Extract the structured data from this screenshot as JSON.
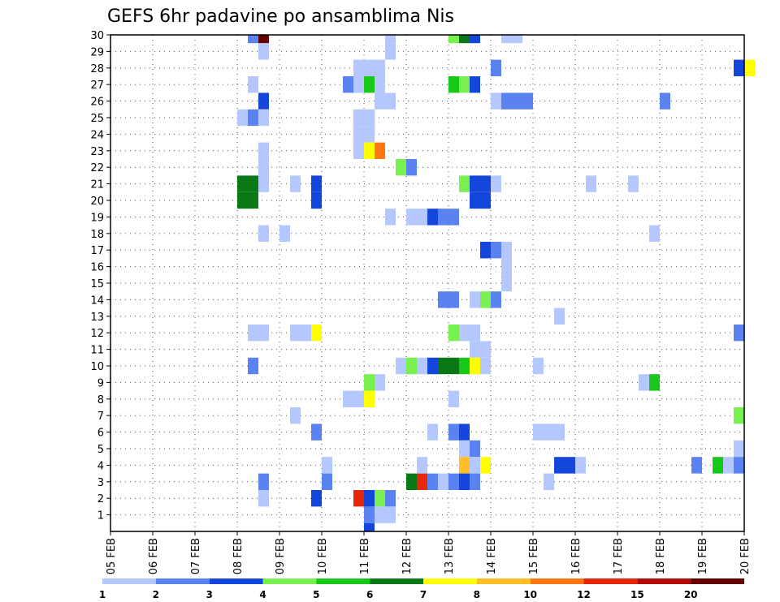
{
  "chart_data": {
    "type": "heatmap",
    "title": "GEFS 6hr padavine po ansamblima Nis",
    "xlabel": "",
    "ylabel": "",
    "x_tick_labels": [
      "05 FEB",
      "06 FEB",
      "07 FEB",
      "08 FEB",
      "09 FEB",
      "10 FEB",
      "11 FEB",
      "12 FEB",
      "13 FEB",
      "14 FEB",
      "15 FEB",
      "16 FEB",
      "17 FEB",
      "18 FEB",
      "19 FEB",
      "20 FEB"
    ],
    "y_tick_labels": [
      "1",
      "2",
      "3",
      "4",
      "5",
      "6",
      "7",
      "8",
      "9",
      "10",
      "11",
      "12",
      "13",
      "14",
      "15",
      "16",
      "17",
      "18",
      "19",
      "20",
      "21",
      "22",
      "23",
      "24",
      "25",
      "26",
      "27",
      "28",
      "29",
      "30"
    ],
    "x_range_days": [
      0,
      15
    ],
    "step_hours": 6,
    "y_range": [
      0,
      30
    ],
    "grid": true,
    "colorbar": {
      "labels": [
        "1",
        "2",
        "3",
        "4",
        "5",
        "6",
        "7",
        "8",
        "10",
        "12",
        "15",
        "20"
      ],
      "colors": [
        "#b4c8ff",
        "#5a82f0",
        "#1446dc",
        "#78f050",
        "#18c818",
        "#0a7814",
        "#ffff00",
        "#ffbe28",
        "#ff7814",
        "#e6280a",
        "#b40a0a",
        "#640000"
      ]
    },
    "cell_format": "[member, first_day_offset, last_day_offset, value_mm]",
    "cells": [
      [
        30,
        3.25,
        3.5,
        2
      ],
      [
        30,
        3.5,
        3.75,
        20
      ],
      [
        30,
        6.5,
        6.75,
        1
      ],
      [
        30,
        8.0,
        8.25,
        4
      ],
      [
        30,
        8.25,
        8.5,
        6
      ],
      [
        30,
        8.5,
        8.75,
        3
      ],
      [
        30,
        9.25,
        9.75,
        1
      ],
      [
        29,
        3.5,
        3.75,
        1
      ],
      [
        29,
        6.5,
        6.75,
        1
      ],
      [
        28,
        5.75,
        6.5,
        1
      ],
      [
        28,
        9.0,
        9.25,
        2
      ],
      [
        28,
        14.75,
        15.0,
        3
      ],
      [
        28,
        15.0,
        15.25,
        7
      ],
      [
        27,
        3.25,
        3.5,
        1
      ],
      [
        27,
        5.5,
        5.75,
        2
      ],
      [
        27,
        5.75,
        6.0,
        1
      ],
      [
        27,
        6.0,
        6.25,
        5
      ],
      [
        27,
        6.25,
        6.5,
        1
      ],
      [
        27,
        8.0,
        8.25,
        5
      ],
      [
        27,
        8.25,
        8.5,
        4
      ],
      [
        27,
        8.5,
        8.75,
        3
      ],
      [
        26,
        3.5,
        3.75,
        3
      ],
      [
        26,
        6.25,
        6.75,
        1
      ],
      [
        26,
        9.0,
        9.25,
        1
      ],
      [
        26,
        9.25,
        10.0,
        2
      ],
      [
        26,
        13.0,
        13.25,
        2
      ],
      [
        25,
        3.0,
        3.25,
        1
      ],
      [
        25,
        3.25,
        3.5,
        2
      ],
      [
        25,
        3.5,
        3.75,
        1
      ],
      [
        25,
        5.75,
        6.25,
        1
      ],
      [
        24,
        5.75,
        6.25,
        1
      ],
      [
        23,
        3.5,
        3.75,
        1
      ],
      [
        23,
        5.75,
        6.0,
        1
      ],
      [
        23,
        6.0,
        6.25,
        7
      ],
      [
        23,
        6.25,
        6.5,
        10
      ],
      [
        22,
        3.5,
        3.75,
        1
      ],
      [
        22,
        6.75,
        7.0,
        4
      ],
      [
        22,
        7.0,
        7.25,
        2
      ],
      [
        21,
        3.0,
        3.5,
        6
      ],
      [
        21,
        3.5,
        3.75,
        1
      ],
      [
        21,
        4.25,
        4.5,
        1
      ],
      [
        21,
        4.75,
        5.0,
        3
      ],
      [
        21,
        8.25,
        8.5,
        4
      ],
      [
        21,
        8.5,
        9.0,
        3
      ],
      [
        21,
        9.0,
        9.25,
        1
      ],
      [
        21,
        11.25,
        11.5,
        1
      ],
      [
        21,
        12.25,
        12.5,
        1
      ],
      [
        20,
        3.0,
        3.5,
        6
      ],
      [
        20,
        4.75,
        5.0,
        3
      ],
      [
        20,
        8.5,
        9.0,
        3
      ],
      [
        19,
        6.5,
        6.75,
        1
      ],
      [
        19,
        7.0,
        7.25,
        1
      ],
      [
        19,
        7.25,
        7.5,
        1
      ],
      [
        19,
        7.5,
        7.75,
        3
      ],
      [
        19,
        7.75,
        8.25,
        2
      ],
      [
        18,
        3.5,
        3.75,
        1
      ],
      [
        18,
        4.0,
        4.25,
        1
      ],
      [
        18,
        12.75,
        13.0,
        1
      ],
      [
        17,
        8.75,
        9.0,
        3
      ],
      [
        17,
        9.0,
        9.25,
        2
      ],
      [
        17,
        9.25,
        9.5,
        1
      ],
      [
        16,
        9.25,
        9.5,
        1
      ],
      [
        15,
        9.25,
        9.5,
        1
      ],
      [
        14,
        7.75,
        8.25,
        2
      ],
      [
        14,
        8.5,
        8.75,
        1
      ],
      [
        14,
        8.75,
        9.0,
        4
      ],
      [
        14,
        9.0,
        9.25,
        2
      ],
      [
        13,
        10.5,
        10.75,
        1
      ],
      [
        12,
        3.25,
        3.75,
        1
      ],
      [
        12,
        4.25,
        4.75,
        1
      ],
      [
        12,
        4.75,
        5.0,
        7
      ],
      [
        12,
        8.0,
        8.25,
        4
      ],
      [
        12,
        8.25,
        8.75,
        1
      ],
      [
        12,
        14.75,
        15.0,
        2
      ],
      [
        11,
        8.5,
        9.0,
        1
      ],
      [
        10,
        3.25,
        3.5,
        2
      ],
      [
        10,
        6.75,
        7.0,
        1
      ],
      [
        10,
        7.0,
        7.25,
        4
      ],
      [
        10,
        7.25,
        7.5,
        1
      ],
      [
        10,
        7.5,
        7.75,
        3
      ],
      [
        10,
        7.75,
        8.25,
        6
      ],
      [
        10,
        8.25,
        8.5,
        5
      ],
      [
        10,
        8.5,
        8.75,
        7
      ],
      [
        10,
        8.75,
        9.0,
        1
      ],
      [
        10,
        10.0,
        10.25,
        1
      ],
      [
        9,
        6.0,
        6.25,
        4
      ],
      [
        9,
        6.25,
        6.5,
        1
      ],
      [
        9,
        12.5,
        12.75,
        1
      ],
      [
        9,
        12.75,
        13.0,
        5
      ],
      [
        8,
        5.5,
        6.0,
        1
      ],
      [
        8,
        6.0,
        6.25,
        7
      ],
      [
        8,
        8.0,
        8.25,
        1
      ],
      [
        7,
        4.25,
        4.5,
        1
      ],
      [
        7,
        14.75,
        15.0,
        4
      ],
      [
        6,
        4.75,
        5.0,
        2
      ],
      [
        6,
        7.5,
        7.75,
        1
      ],
      [
        6,
        8.0,
        8.25,
        2
      ],
      [
        6,
        8.25,
        8.5,
        3
      ],
      [
        6,
        10.0,
        10.75,
        1
      ],
      [
        5,
        8.25,
        8.5,
        1
      ],
      [
        5,
        8.5,
        8.75,
        2
      ],
      [
        5,
        14.75,
        15.0,
        1
      ],
      [
        4,
        5.0,
        5.25,
        1
      ],
      [
        4,
        7.25,
        7.5,
        1
      ],
      [
        4,
        8.25,
        8.5,
        8
      ],
      [
        4,
        8.5,
        8.75,
        1
      ],
      [
        4,
        8.75,
        9.0,
        7
      ],
      [
        4,
        10.5,
        11.0,
        3
      ],
      [
        4,
        11.0,
        11.25,
        1
      ],
      [
        4,
        13.75,
        14.0,
        2
      ],
      [
        4,
        14.25,
        14.5,
        5
      ],
      [
        4,
        14.5,
        14.75,
        1
      ],
      [
        4,
        14.75,
        15.0,
        2
      ],
      [
        3,
        3.5,
        3.75,
        2
      ],
      [
        3,
        5.0,
        5.25,
        2
      ],
      [
        3,
        7.0,
        7.25,
        6
      ],
      [
        3,
        7.25,
        7.5,
        12
      ],
      [
        3,
        7.5,
        7.75,
        2
      ],
      [
        3,
        7.75,
        8.0,
        1
      ],
      [
        3,
        8.0,
        8.25,
        2
      ],
      [
        3,
        8.25,
        8.5,
        3
      ],
      [
        3,
        8.5,
        8.75,
        2
      ],
      [
        3,
        10.25,
        10.5,
        1
      ],
      [
        2,
        3.5,
        3.75,
        1
      ],
      [
        2,
        4.75,
        5.0,
        3
      ],
      [
        2,
        5.75,
        6.0,
        12
      ],
      [
        2,
        6.0,
        6.25,
        3
      ],
      [
        2,
        6.25,
        6.5,
        4
      ],
      [
        2,
        6.5,
        6.75,
        2
      ],
      [
        1,
        6.0,
        6.25,
        2
      ],
      [
        1,
        6.25,
        6.75,
        1
      ],
      [
        0,
        6.0,
        6.25,
        3
      ]
    ]
  }
}
